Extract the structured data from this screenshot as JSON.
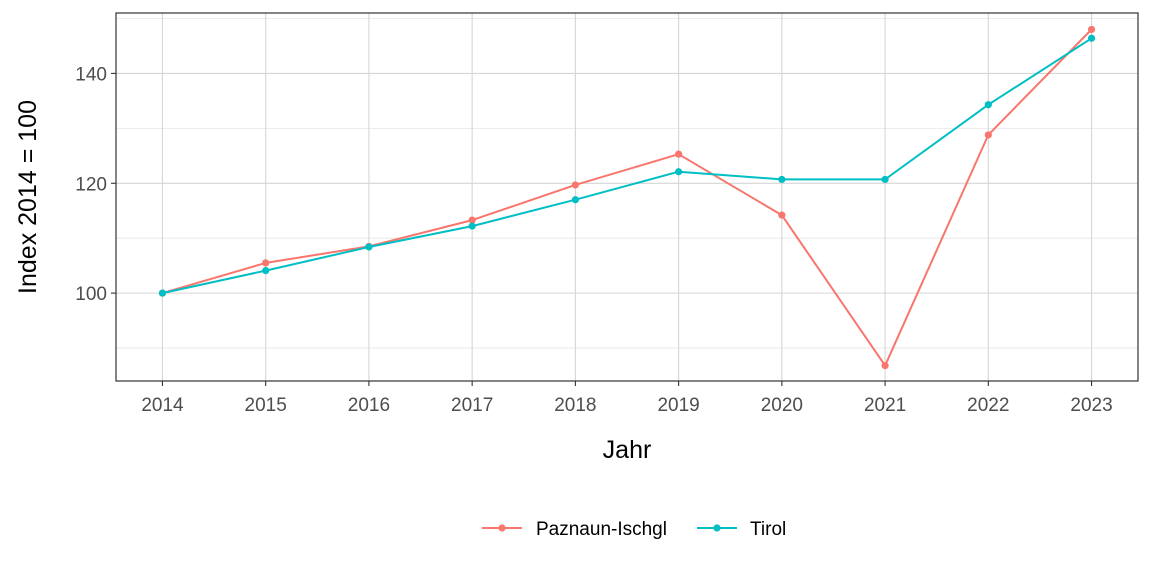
{
  "chart_data": {
    "type": "line",
    "xlabel": "Jahr",
    "ylabel": "Index  2014  = 100",
    "x": [
      2014,
      2015,
      2016,
      2017,
      2018,
      2019,
      2020,
      2021,
      2022,
      2023
    ],
    "xlim": [
      2013.55,
      2023.45
    ],
    "ylim": [
      84,
      151
    ],
    "yticks": [
      100,
      120,
      140
    ],
    "y_minor_gridlines": [
      90,
      110,
      130,
      150
    ],
    "grid": true,
    "legend_position": "bottom",
    "series": [
      {
        "name": "Paznaun-Ischgl",
        "color": "#F8766D",
        "values": [
          100,
          105.5,
          108.5,
          113.3,
          119.7,
          125.3,
          114.2,
          86.8,
          128.8,
          148.0
        ]
      },
      {
        "name": "Tirol",
        "color": "#00BFC4",
        "values": [
          100,
          104.1,
          108.4,
          112.2,
          117.0,
          122.1,
          120.7,
          120.7,
          134.3,
          146.4
        ]
      }
    ]
  }
}
